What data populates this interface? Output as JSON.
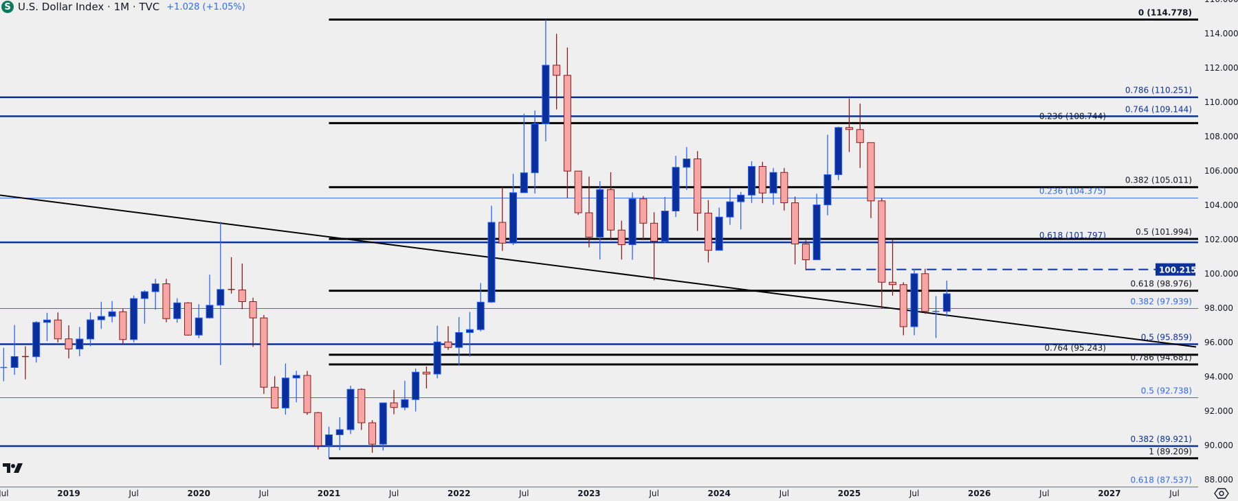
{
  "header": {
    "symbol_icon": "dollar-s-icon",
    "symbol_letter": "S",
    "title": "U.S. Dollar Index · 1M · TVC",
    "change": "+1.028 (+1.05%)"
  },
  "colors": {
    "background": "#efefef",
    "up_fill": "#0a2f9a",
    "up_border": "#2962ff",
    "down_fill": "#f7a6a6",
    "down_border": "#8b1a1a",
    "fib_black": "#000000",
    "fib_dark_blue": "#0c3299",
    "fib_light_blue": "#2f6bf0",
    "price_badge": "#0c3299"
  },
  "chart_data": {
    "type": "candlestick",
    "title": "U.S. Dollar Index · 1M · TVC",
    "ylim": [
      87,
      116.5
    ],
    "xlim": [
      "2018-06",
      "2027-09"
    ],
    "y_ticks": [
      "88.000",
      "90.000",
      "92.000",
      "94.000",
      "96.000",
      "98.000",
      "100.000",
      "102.000",
      "104.000",
      "106.000",
      "108.000",
      "110.000",
      "112.000",
      "114.000",
      "116.000"
    ],
    "x_ticks": [
      {
        "label": "Jul",
        "date": "2018-07"
      },
      {
        "label": "2019",
        "date": "2019-01"
      },
      {
        "label": "Jul",
        "date": "2019-07"
      },
      {
        "label": "2020",
        "date": "2020-01"
      },
      {
        "label": "Jul",
        "date": "2020-07"
      },
      {
        "label": "2021",
        "date": "2021-01"
      },
      {
        "label": "Jul",
        "date": "2021-07"
      },
      {
        "label": "2022",
        "date": "2022-01"
      },
      {
        "label": "Jul",
        "date": "2022-07"
      },
      {
        "label": "2023",
        "date": "2023-01"
      },
      {
        "label": "Jul",
        "date": "2023-07"
      },
      {
        "label": "2024",
        "date": "2024-01"
      },
      {
        "label": "Jul",
        "date": "2024-07"
      },
      {
        "label": "2025",
        "date": "2025-01"
      },
      {
        "label": "Jul",
        "date": "2025-07"
      },
      {
        "label": "2026",
        "date": "2026-01"
      },
      {
        "label": "Jul",
        "date": "2026-07"
      },
      {
        "label": "2027",
        "date": "2027-01"
      },
      {
        "label": "Jul",
        "date": "2027-07"
      }
    ],
    "grid": false,
    "candles": [
      [
        "2018-07",
        94.5,
        95.65,
        93.7,
        94.5
      ],
      [
        "2018-08",
        94.5,
        96.98,
        94.08,
        95.14
      ],
      [
        "2018-09",
        95.14,
        95.74,
        93.81,
        95.13
      ],
      [
        "2018-10",
        95.13,
        97.2,
        94.79,
        97.13
      ],
      [
        "2018-11",
        97.13,
        97.69,
        96.04,
        97.27
      ],
      [
        "2018-12",
        97.27,
        97.71,
        95.96,
        96.17
      ],
      [
        "2019-01",
        96.17,
        96.96,
        95.03,
        95.58
      ],
      [
        "2019-02",
        95.58,
        96.86,
        95.16,
        96.16
      ],
      [
        "2019-03",
        96.16,
        97.71,
        95.74,
        97.28
      ],
      [
        "2019-04",
        97.28,
        98.33,
        96.75,
        97.48
      ],
      [
        "2019-05",
        97.48,
        98.37,
        97.13,
        97.75
      ],
      [
        "2019-06",
        97.75,
        97.92,
        95.84,
        96.13
      ],
      [
        "2019-07",
        96.13,
        98.69,
        95.97,
        98.52
      ],
      [
        "2019-08",
        98.52,
        99.0,
        97.06,
        98.92
      ],
      [
        "2019-09",
        98.92,
        99.67,
        97.87,
        99.38
      ],
      [
        "2019-10",
        99.38,
        99.67,
        97.14,
        97.35
      ],
      [
        "2019-11",
        97.35,
        98.54,
        97.12,
        98.27
      ],
      [
        "2019-12",
        98.27,
        98.31,
        96.36,
        96.39
      ],
      [
        "2020-01",
        96.39,
        98.19,
        96.21,
        97.39
      ],
      [
        "2020-02",
        97.39,
        99.91,
        97.35,
        98.13
      ],
      [
        "2020-03",
        98.13,
        102.99,
        94.65,
        99.05
      ],
      [
        "2020-04",
        99.05,
        100.93,
        98.81,
        99.02
      ],
      [
        "2020-05",
        99.02,
        100.56,
        97.9,
        98.34
      ],
      [
        "2020-06",
        98.34,
        98.57,
        95.71,
        97.39
      ],
      [
        "2020-07",
        97.39,
        97.56,
        92.96,
        93.35
      ],
      [
        "2020-08",
        93.35,
        93.99,
        92.12,
        92.14
      ],
      [
        "2020-09",
        92.14,
        94.74,
        91.75,
        93.89
      ],
      [
        "2020-10",
        93.89,
        94.31,
        92.47,
        94.04
      ],
      [
        "2020-11",
        94.04,
        94.3,
        91.74,
        91.87
      ],
      [
        "2020-12",
        91.87,
        91.91,
        89.72,
        89.94
      ],
      [
        "2021-01",
        89.94,
        91.05,
        89.21,
        90.58
      ],
      [
        "2021-02",
        90.58,
        91.6,
        89.68,
        90.88
      ],
      [
        "2021-03",
        90.88,
        93.44,
        90.63,
        93.23
      ],
      [
        "2021-04",
        93.23,
        93.29,
        90.86,
        91.28
      ],
      [
        "2021-05",
        91.28,
        91.43,
        89.53,
        90.03
      ],
      [
        "2021-06",
        90.03,
        92.45,
        89.66,
        92.44
      ],
      [
        "2021-07",
        92.44,
        93.19,
        91.78,
        92.17
      ],
      [
        "2021-08",
        92.17,
        93.73,
        92.0,
        92.63
      ],
      [
        "2021-09",
        92.63,
        94.44,
        91.94,
        94.23
      ],
      [
        "2021-10",
        94.23,
        94.56,
        93.28,
        94.12
      ],
      [
        "2021-11",
        94.12,
        96.94,
        93.87,
        95.99
      ],
      [
        "2021-12",
        95.99,
        96.91,
        95.53,
        95.67
      ],
      [
        "2022-01",
        95.67,
        97.44,
        94.63,
        96.54
      ],
      [
        "2022-02",
        96.54,
        97.74,
        95.14,
        96.71
      ],
      [
        "2022-03",
        96.71,
        99.42,
        96.61,
        98.31
      ],
      [
        "2022-04",
        98.31,
        103.93,
        98.27,
        102.96
      ],
      [
        "2022-05",
        102.96,
        105.01,
        101.3,
        101.75
      ],
      [
        "2022-06",
        101.75,
        105.79,
        101.64,
        104.69
      ],
      [
        "2022-07",
        104.69,
        109.29,
        104.69,
        105.85
      ],
      [
        "2022-08",
        105.85,
        109.48,
        104.64,
        108.7
      ],
      [
        "2022-09",
        108.7,
        114.78,
        107.68,
        112.12
      ],
      [
        "2022-10",
        112.12,
        113.95,
        109.54,
        111.53
      ],
      [
        "2022-11",
        111.53,
        113.15,
        104.37,
        105.95
      ],
      [
        "2022-12",
        105.95,
        105.82,
        103.39,
        103.52
      ],
      [
        "2023-01",
        103.52,
        105.63,
        101.5,
        102.1
      ],
      [
        "2023-02",
        102.1,
        105.36,
        100.8,
        104.87
      ],
      [
        "2023-03",
        104.87,
        105.88,
        101.92,
        102.51
      ],
      [
        "2023-04",
        102.51,
        103.06,
        100.79,
        101.66
      ],
      [
        "2023-05",
        101.66,
        104.7,
        100.78,
        104.33
      ],
      [
        "2023-06",
        104.33,
        104.5,
        101.92,
        102.91
      ],
      [
        "2023-07",
        102.91,
        103.55,
        99.58,
        101.86
      ],
      [
        "2023-08",
        101.86,
        104.44,
        101.74,
        103.62
      ],
      [
        "2023-09",
        103.62,
        106.84,
        103.27,
        106.17
      ],
      [
        "2023-10",
        106.17,
        107.35,
        104.85,
        106.66
      ],
      [
        "2023-11",
        106.66,
        107.11,
        102.46,
        103.5
      ],
      [
        "2023-12",
        103.5,
        104.26,
        100.62,
        101.33
      ],
      [
        "2024-01",
        101.33,
        103.82,
        101.34,
        103.27
      ],
      [
        "2024-02",
        103.27,
        104.97,
        102.82,
        104.16
      ],
      [
        "2024-03",
        104.16,
        104.73,
        102.55,
        104.55
      ],
      [
        "2024-04",
        104.55,
        106.52,
        104.09,
        106.22
      ],
      [
        "2024-05",
        106.22,
        106.49,
        104.08,
        104.67
      ],
      [
        "2024-06",
        104.67,
        106.13,
        103.99,
        105.87
      ],
      [
        "2024-07",
        105.87,
        106.13,
        103.65,
        104.1
      ],
      [
        "2024-08",
        104.1,
        104.46,
        100.51,
        101.7
      ],
      [
        "2024-09",
        101.7,
        101.91,
        100.16,
        100.78
      ],
      [
        "2024-10",
        100.78,
        104.63,
        100.79,
        103.98
      ],
      [
        "2024-11",
        103.98,
        108.07,
        103.37,
        105.74
      ],
      [
        "2024-12",
        105.74,
        108.54,
        105.42,
        108.49
      ],
      [
        "2025-01",
        108.49,
        110.18,
        107.06,
        108.37
      ],
      [
        "2025-02",
        108.37,
        109.88,
        106.13,
        107.61
      ],
      [
        "2025-03",
        107.61,
        107.61,
        103.21,
        104.21
      ],
      [
        "2025-04",
        104.21,
        104.37,
        97.92,
        99.47
      ],
      [
        "2025-05",
        99.47,
        101.98,
        98.69,
        99.33
      ],
      [
        "2025-06",
        99.33,
        99.47,
        96.38,
        96.88
      ],
      [
        "2025-07",
        96.88,
        100.25,
        96.38,
        99.97
      ],
      [
        "2025-08",
        99.97,
        100.26,
        97.63,
        97.77
      ],
      [
        "2025-09",
        97.77,
        98.66,
        96.22,
        97.77
      ],
      [
        "2025-10",
        97.77,
        99.56,
        97.46,
        98.8
      ]
    ],
    "fib_levels": [
      {
        "label": "0 (114.778)",
        "value": 114.778,
        "style": "black",
        "start": "2021-01",
        "bold": true
      },
      {
        "label": "0.236 (108.744)",
        "value": 108.744,
        "style": "black",
        "start": "2021-01"
      },
      {
        "label": "0.382 (105.011)",
        "value": 105.011,
        "style": "black",
        "start": "2021-01"
      },
      {
        "label": "0.5 (101.994)",
        "value": 101.994,
        "style": "black",
        "start": "2021-01"
      },
      {
        "label": "0.618 (98.976)",
        "value": 98.976,
        "style": "black",
        "start": "2021-01"
      },
      {
        "label": "0.764 (95.243)",
        "value": 95.243,
        "style": "black",
        "start": "2021-01"
      },
      {
        "label": "0.786 (94.681)",
        "value": 94.681,
        "style": "black",
        "start": "2021-01"
      },
      {
        "label": "1 (89.209)",
        "value": 89.209,
        "style": "black",
        "start": "2021-01"
      },
      {
        "label": "0.786 (110.251)",
        "value": 110.251,
        "style": "dark_blue",
        "start": "2018-06"
      },
      {
        "label": "0.764 (109.144)",
        "value": 109.144,
        "style": "dark_blue",
        "start": "2018-06"
      },
      {
        "label": "0.618 (101.797)",
        "value": 101.797,
        "style": "dark_blue",
        "start": "2018-06"
      },
      {
        "label": "0.5 (95.859)",
        "value": 95.859,
        "style": "dark_blue",
        "start": "2018-06"
      },
      {
        "label": "0.382 (89.921)",
        "value": 89.921,
        "style": "dark_blue",
        "start": "2018-06"
      },
      {
        "label": "0.236 (104.375)",
        "value": 104.375,
        "style": "light_blue",
        "start": "2018-06"
      },
      {
        "label": "0.382 (97.939)",
        "value": 97.939,
        "style": "light_blue",
        "start": "2018-06"
      },
      {
        "label": "0.5 (92.738)",
        "value": 92.738,
        "style": "light_blue",
        "start": "2018-06"
      },
      {
        "label": "0.618 (87.537)",
        "value": 87.537,
        "style": "light_blue",
        "start": "2018-06"
      }
    ],
    "horizontal_ray": {
      "value": 100.215,
      "start": "2024-09",
      "label": "100.215",
      "dashed": true
    },
    "trendline": [
      [
        "2018-06",
        104.6
      ],
      [
        "2027-09",
        95.7
      ]
    ]
  },
  "footer": {
    "logo": "tradingview-logo",
    "settings_icon": "settings-gear-icon"
  }
}
